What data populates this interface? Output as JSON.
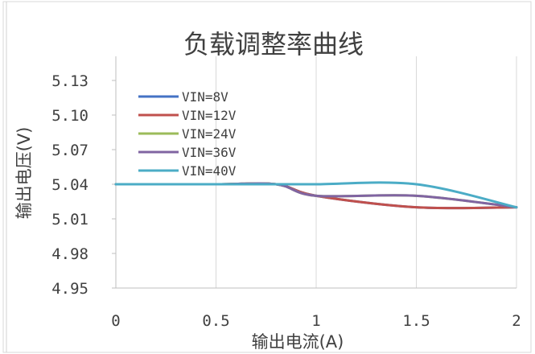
{
  "chart_data": {
    "type": "line",
    "title": "负载调整率曲线",
    "xlabel": "输出电流(A)",
    "ylabel": "输出电压(V)",
    "xlim": [
      0,
      2
    ],
    "ylim": [
      4.95,
      5.13
    ],
    "x_ticks": [
      "0",
      "0.5",
      "1",
      "1.5",
      "2"
    ],
    "x_tick_values": [
      0,
      0.5,
      1,
      1.5,
      2
    ],
    "y_ticks": [
      "4.95",
      "4.98",
      "5.01",
      "5.04",
      "5.07",
      "5.10",
      "5.13"
    ],
    "y_tick_values": [
      4.95,
      4.98,
      5.01,
      5.04,
      5.07,
      5.1,
      5.13
    ],
    "grid": "vertical",
    "legend_position": "top-left",
    "x": [
      0,
      0.5,
      0.8,
      1,
      1.5,
      2
    ],
    "series": [
      {
        "name": "VIN=8V",
        "color": "#4472c4",
        "values": [
          5.04,
          5.04,
          5.04,
          5.03,
          5.02,
          5.02
        ]
      },
      {
        "name": "VIN=12V",
        "color": "#c0504d",
        "values": [
          5.04,
          5.04,
          5.04,
          5.03,
          5.02,
          5.02
        ]
      },
      {
        "name": "VIN=24V",
        "color": "#9bbb59",
        "values": [
          5.04,
          5.04,
          5.04,
          5.03,
          5.03,
          5.02
        ]
      },
      {
        "name": "VIN=36V",
        "color": "#8064a2",
        "values": [
          5.04,
          5.04,
          5.04,
          5.03,
          5.03,
          5.02
        ]
      },
      {
        "name": "VIN=40V",
        "color": "#4bacc6",
        "values": [
          5.04,
          5.04,
          5.04,
          5.04,
          5.04,
          5.02
        ]
      }
    ]
  }
}
